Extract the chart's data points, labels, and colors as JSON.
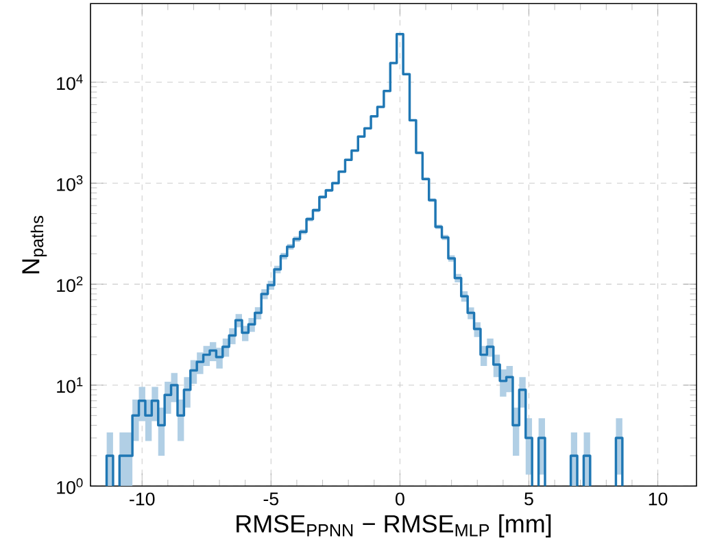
{
  "chart_data": {
    "type": "step",
    "xlabel": "RMSE$_{PPNN}$ − RMSE$_{MLP}$ [mm]",
    "ylabel": "N$_{paths}$",
    "x": [
      -11.25,
      -11.0,
      -10.75,
      -10.5,
      -10.25,
      -10.0,
      -9.75,
      -9.5,
      -9.25,
      -9.0,
      -8.75,
      -8.5,
      -8.25,
      -8.0,
      -7.75,
      -7.5,
      -7.25,
      -7.0,
      -6.75,
      -6.5,
      -6.25,
      -6.0,
      -5.75,
      -5.5,
      -5.25,
      -5.0,
      -4.75,
      -4.5,
      -4.25,
      -4.0,
      -3.75,
      -3.5,
      -3.25,
      -3.0,
      -2.75,
      -2.5,
      -2.25,
      -2.0,
      -1.75,
      -1.5,
      -1.25,
      -1.0,
      -0.75,
      -0.5,
      -0.25,
      0.0,
      0.25,
      0.5,
      0.75,
      1.0,
      1.25,
      1.5,
      1.75,
      2.0,
      2.25,
      2.5,
      2.75,
      3.0,
      3.25,
      3.5,
      3.75,
      4.0,
      4.25,
      4.5,
      4.75,
      5.0,
      5.25,
      5.5,
      5.75,
      6.0,
      6.25,
      6.5,
      6.75,
      7.0,
      7.25,
      7.5,
      7.75,
      8.0,
      8.25,
      8.5
    ],
    "series": [
      {
        "color": "#1f77b4",
        "values": [
          2,
          null,
          2,
          2,
          5,
          7,
          5,
          7,
          4,
          8,
          10,
          5,
          9,
          14,
          17,
          20,
          22,
          19,
          24,
          31,
          44,
          33,
          40,
          52,
          80,
          98,
          140,
          190,
          235,
          280,
          330,
          440,
          540,
          730,
          850,
          1000,
          1300,
          1700,
          2100,
          2900,
          3500,
          4600,
          5700,
          8200,
          15500,
          30000,
          12000,
          4200,
          2000,
          1100,
          680,
          370,
          290,
          180,
          115,
          76,
          52,
          36,
          20,
          24,
          16,
          11,
          12,
          4,
          9,
          3,
          null,
          3,
          null,
          null,
          null,
          null,
          2,
          null,
          2,
          null,
          null,
          null,
          null,
          3
        ],
        "lower": [
          1,
          null,
          1,
          1,
          2.8,
          4.4,
          2.8,
          4.4,
          2,
          5.2,
          6.8,
          2.8,
          6,
          10.3,
          12.9,
          15.5,
          17.3,
          14.6,
          19.1,
          25.4,
          37.4,
          27.3,
          33.7,
          44.8,
          71,
          88,
          128,
          176,
          220,
          263,
          312,
          419,
          517,
          703,
          821,
          968,
          1264,
          1659,
          2054,
          2846,
          3441,
          4532,
          5625,
          8109,
          15376,
          29827,
          11890,
          4135,
          1955,
          1067,
          654,
          351,
          273,
          167,
          104,
          67,
          45,
          30,
          15.5,
          19.1,
          12,
          7.7,
          8.5,
          2,
          6,
          1.3,
          null,
          1.3,
          null,
          null,
          null,
          null,
          1,
          null,
          1,
          null,
          null,
          null,
          null,
          1.3
        ],
        "upper": [
          3.4,
          null,
          3.4,
          3.4,
          7.2,
          9.6,
          7.2,
          9.6,
          6,
          10.8,
          13.2,
          7.2,
          12,
          17.7,
          21.1,
          24.5,
          26.7,
          23.4,
          28.9,
          36.6,
          50.6,
          38.7,
          46.3,
          59.2,
          89,
          108,
          152,
          204,
          250,
          297,
          348,
          461,
          563,
          757,
          879,
          1032,
          1336,
          1741,
          2146,
          2954,
          3559,
          4668,
          5775,
          8291,
          15624,
          30173,
          12110,
          4265,
          2045,
          1133,
          706,
          389,
          307,
          193,
          126,
          85,
          59,
          42,
          24.5,
          28.9,
          20,
          14.3,
          15.5,
          6,
          12,
          4.7,
          null,
          4.7,
          null,
          null,
          null,
          null,
          3.4,
          null,
          3.4,
          null,
          null,
          null,
          null,
          4.7
        ]
      }
    ],
    "xlim": [
      -12,
      11.5
    ],
    "ylim": [
      1,
      60000
    ],
    "xticks": [
      -10,
      -5,
      0,
      5,
      10
    ],
    "yticks": [
      {
        "value": 1,
        "label": "10$^{0}$"
      },
      {
        "value": 10,
        "label": "10$^{1}$"
      },
      {
        "value": 100,
        "label": "10$^{2}$"
      },
      {
        "value": 1000,
        "label": "10$^{3}$"
      },
      {
        "value": 10000,
        "label": "10$^{4}$"
      }
    ],
    "log": "y",
    "grid": true
  }
}
